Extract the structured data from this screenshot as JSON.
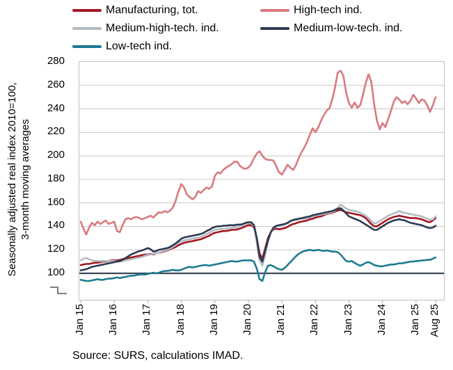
{
  "legend": {
    "items": [
      {
        "label": "Manufacturing, tot.",
        "color": "#A5161F"
      },
      {
        "label": "High-tech ind.",
        "color": "#D9797E"
      },
      {
        "label": "Medium-high-tech. ind.",
        "color": "#B3BBC3"
      },
      {
        "label": "Medium-low-tech. ind.",
        "color": "#2C3A52"
      },
      {
        "label": "Low-tech ind.",
        "color": "#1E7A90"
      }
    ]
  },
  "y_axis": {
    "title_line1": "Seasonally adjusted real index 2010=100,",
    "title_line2": "3-month moving averages",
    "ticks": [
      280,
      260,
      240,
      220,
      200,
      180,
      160,
      140,
      120,
      100
    ],
    "has_axis_break": true
  },
  "x_axis": {
    "tick_labels": [
      "Jan 15",
      "Jan 16",
      "Jan 17",
      "Jan 18",
      "Jan 19",
      "Jan 20",
      "Jan 21",
      "Jan 22",
      "Jan 23",
      "Jan 24",
      "Jan 25",
      "Aug 25"
    ],
    "tick_month_indices": [
      0,
      12,
      24,
      36,
      48,
      60,
      72,
      84,
      96,
      108,
      120,
      127
    ]
  },
  "footer": {
    "source": "Source: SURS, calculations IMAD."
  },
  "colors": {
    "gridline": "#C9C9C9",
    "plot_border": "#C0C0C0",
    "baseline_100": "#3D4756",
    "axis_break": "#595959",
    "tick_mark": "#ABABAB",
    "text": "#000000"
  },
  "chart_data": {
    "type": "line",
    "title": "",
    "xlabel": "",
    "ylabel": "Seasonally adjusted real index 2010=100, 3-month moving averages",
    "x_unit": "month",
    "x_range": [
      "Jan 2015",
      "Aug 2025"
    ],
    "points_per_series": 128,
    "ylim": [
      100,
      280
    ],
    "y_tick_step": 20,
    "y_axis_break_below": 100,
    "reference_line": 100,
    "grid": "horizontal",
    "legend_position": "top",
    "series": [
      {
        "name": "Manufacturing, tot.",
        "color": "#A5161F",
        "values": [
          107,
          107.5,
          108,
          108,
          108.5,
          109,
          109,
          109.5,
          110,
          110,
          110.5,
          111,
          111,
          111,
          111.5,
          112,
          112.5,
          113,
          113.5,
          114,
          114.5,
          115,
          115.5,
          116,
          116,
          116.5,
          116,
          117,
          117.5,
          118,
          119,
          119.5,
          120.5,
          121.5,
          122.5,
          124,
          125,
          126,
          126.5,
          127,
          127.5,
          128,
          128.5,
          129,
          130,
          131,
          132,
          133.5,
          134.5,
          135,
          135.5,
          136,
          136,
          136.5,
          137,
          137,
          137.5,
          138,
          139,
          140,
          141,
          141,
          139,
          130,
          117,
          112.5,
          121,
          130,
          135,
          137.5,
          138,
          137.5,
          138,
          138.5,
          139.5,
          141,
          142,
          142.5,
          143.5,
          144,
          144.5,
          145,
          146,
          146.5,
          147.5,
          148,
          148.5,
          149.5,
          150.5,
          151,
          151.5,
          152.5,
          153.5,
          154,
          153,
          152,
          151.5,
          151,
          150.5,
          150,
          149.5,
          148.5,
          147,
          144.5,
          142,
          140,
          140,
          141.5,
          143,
          144.5,
          146,
          147,
          148,
          148.5,
          149,
          148.5,
          148,
          147.5,
          147,
          147,
          147,
          146.5,
          146,
          145,
          144,
          143.5,
          145,
          147
        ]
      },
      {
        "name": "High-tech ind.",
        "color": "#D9797E",
        "values": [
          144,
          138,
          133,
          139,
          143,
          141,
          144,
          142,
          143.5,
          145,
          142,
          143,
          144,
          136,
          135,
          141,
          146,
          147,
          146,
          147.5,
          148,
          147,
          146,
          147,
          148,
          149,
          147.5,
          150,
          152,
          151.5,
          153,
          152,
          153.5,
          156,
          162,
          170,
          176,
          173,
          167,
          165,
          163,
          165,
          170,
          168.5,
          171,
          173,
          172,
          174,
          183,
          186,
          185,
          188,
          190,
          191.5,
          193,
          195,
          195,
          191.5,
          189.5,
          189,
          190,
          193,
          198,
          202,
          204,
          200,
          197.5,
          196.5,
          196.5,
          196,
          191,
          186,
          184,
          188,
          192.5,
          190,
          188,
          192,
          198,
          203,
          207,
          212,
          218,
          223.5,
          220,
          224,
          230,
          234.5,
          238.5,
          240.5,
          248,
          258,
          271,
          272.5,
          268,
          254,
          245,
          241,
          245.5,
          241,
          243,
          252,
          262,
          269.5,
          263,
          244,
          230,
          222.5,
          228,
          224.5,
          231,
          238,
          246,
          250,
          248,
          245,
          246.5,
          244,
          247,
          252,
          249,
          245,
          248,
          247,
          243,
          237.5,
          243,
          250
        ]
      },
      {
        "name": "Medium-high-tech. ind.",
        "color": "#B3BBC3",
        "values": [
          111,
          112.5,
          113,
          112,
          111,
          110.5,
          110.5,
          110.5,
          110.5,
          110.5,
          110.5,
          110.5,
          110.5,
          110,
          110,
          110.5,
          111,
          111.5,
          112,
          112.5,
          113,
          113.5,
          114,
          115,
          115.5,
          116,
          116.5,
          117,
          117.5,
          118.5,
          119.5,
          120,
          121,
          122.5,
          124,
          126,
          127,
          128,
          128.5,
          129,
          129.5,
          130,
          130.5,
          131,
          132,
          133.5,
          134.5,
          136,
          137,
          137.5,
          137.5,
          138,
          138,
          138.5,
          138.5,
          139,
          139.5,
          140,
          141,
          142,
          142.5,
          142.5,
          140,
          126,
          111,
          106.5,
          116,
          127,
          134.5,
          138.5,
          140,
          140.5,
          141,
          141.5,
          142.5,
          144,
          145,
          145.5,
          146,
          146.5,
          146.5,
          147,
          147.5,
          148.5,
          149,
          149.5,
          150,
          150.5,
          151,
          151.5,
          152,
          153.5,
          156,
          158.5,
          157,
          155,
          154,
          153.5,
          153,
          152.5,
          151.5,
          150.5,
          149,
          147,
          144.5,
          142.5,
          143,
          144.5,
          146,
          147.5,
          149,
          150,
          151,
          152,
          153,
          152,
          151.5,
          151,
          150.5,
          150,
          149.5,
          149,
          148.5,
          147.5,
          146.5,
          145.5,
          146,
          148.5
        ]
      },
      {
        "name": "Medium-low-tech. ind.",
        "color": "#2C3A52",
        "values": [
          102.5,
          103,
          103.5,
          104.5,
          105.5,
          106,
          106.5,
          107,
          107.5,
          108,
          108.5,
          109,
          109.5,
          110,
          110.5,
          111.5,
          113,
          114.5,
          116,
          117,
          118,
          119,
          119.5,
          120.5,
          121.5,
          120.5,
          118.5,
          119,
          120,
          120.5,
          121,
          121.5,
          122.5,
          124,
          125.5,
          127.5,
          129.5,
          130.5,
          131,
          131.5,
          132,
          132.5,
          133,
          133.5,
          134.5,
          136,
          137,
          138.5,
          139.5,
          140,
          140,
          140.5,
          140.5,
          141,
          141,
          141,
          141.5,
          141.5,
          142,
          143,
          143.5,
          143.5,
          141,
          130,
          114,
          110,
          119,
          128,
          135,
          139,
          140.5,
          141,
          141.5,
          142,
          143,
          144.5,
          145.5,
          146,
          146.5,
          147,
          147.5,
          148,
          148.5,
          149.5,
          150,
          150.5,
          151,
          151.5,
          152,
          152.5,
          153,
          154,
          155,
          155.5,
          153.5,
          151,
          148.5,
          147.5,
          146.5,
          145.5,
          144.5,
          143,
          141.5,
          140,
          138.5,
          137,
          137,
          138.5,
          140,
          141.5,
          143,
          144,
          145,
          145.5,
          146,
          145.5,
          145,
          144,
          143,
          142.5,
          142,
          141.5,
          141,
          140,
          139,
          138.5,
          139,
          140.5
        ]
      },
      {
        "name": "Low-tech ind.",
        "color": "#1E7A90",
        "values": [
          94.5,
          94,
          93.5,
          93.5,
          94,
          94.5,
          95,
          94.5,
          94.5,
          95,
          95.5,
          95.5,
          96,
          96.5,
          96,
          96.5,
          97,
          97.5,
          98,
          98,
          98.5,
          99,
          99,
          99,
          99.5,
          100,
          100.5,
          100,
          100.5,
          101.5,
          102,
          102,
          102.5,
          103,
          102.5,
          102.5,
          103,
          104,
          105,
          105.5,
          105,
          105.5,
          106,
          106.5,
          107,
          107,
          106.5,
          107,
          107.5,
          108,
          108.5,
          109,
          109.5,
          110,
          110.5,
          110,
          110,
          110.5,
          111,
          111,
          111,
          111,
          110,
          104,
          95,
          93.5,
          101,
          106.5,
          107,
          106,
          104.5,
          103.5,
          103,
          104.5,
          107,
          109.5,
          112,
          114.5,
          116.5,
          118,
          119,
          119.5,
          120,
          119.5,
          119.5,
          120,
          119.5,
          119,
          119.5,
          119,
          118.5,
          118.5,
          118,
          116,
          113,
          110.5,
          110,
          110.5,
          109,
          107.5,
          106.5,
          107.5,
          109,
          109.5,
          108.5,
          107,
          106.5,
          106,
          106,
          106.5,
          107,
          107.5,
          107.5,
          108,
          108.5,
          108.5,
          109,
          109.5,
          110,
          110,
          110.5,
          110.5,
          111,
          111,
          111.5,
          111.5,
          112.5,
          113.5
        ]
      }
    ]
  }
}
